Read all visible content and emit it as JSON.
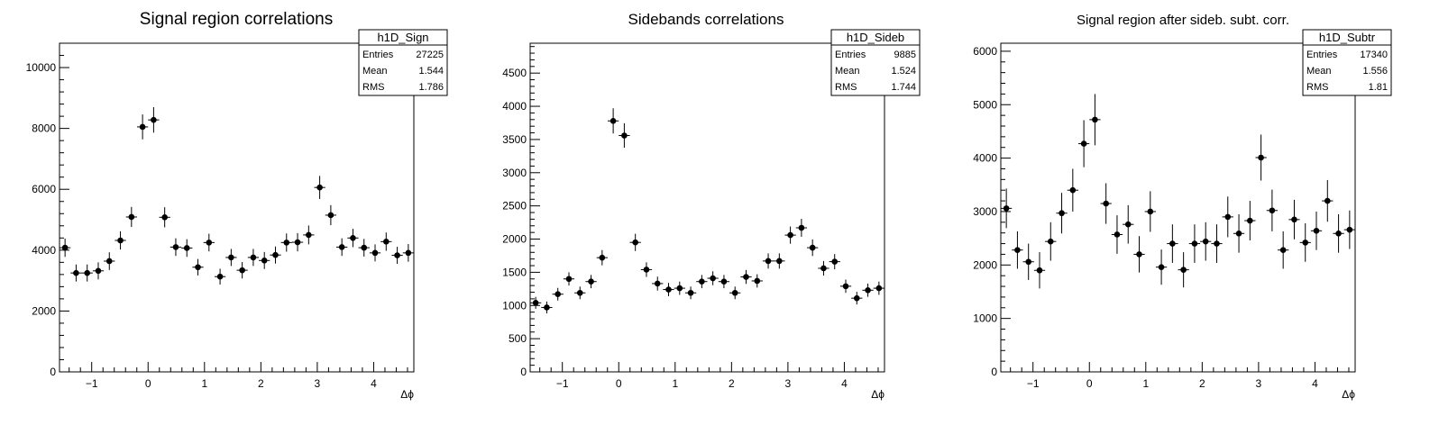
{
  "chart_data": [
    {
      "type": "scatter",
      "title": "Signal region correlations",
      "xlabel": "Δϕ",
      "ylabel": "",
      "xlim": [
        -1.5708,
        4.7124
      ],
      "ylim": [
        0,
        10800
      ],
      "xticks": [
        -1,
        0,
        1,
        2,
        3,
        4
      ],
      "yticks": [
        0,
        2000,
        4000,
        6000,
        8000,
        10000
      ],
      "ytick_labels": [
        "0",
        "2000",
        "4000",
        "6000",
        "8000",
        "10000"
      ],
      "stats": {
        "name": "h1D_Sign",
        "rows": [
          {
            "label": "Entries",
            "value": "27225"
          },
          {
            "label": "Mean",
            "value": "1.544"
          },
          {
            "label": "RMS",
            "value": "1.786"
          }
        ]
      },
      "series": [
        {
          "values": [
            4080,
            3250,
            3250,
            3320,
            3640,
            4320,
            5090,
            8050,
            8280,
            5080,
            4100,
            4070,
            3440,
            4250,
            3130,
            3760,
            3340,
            3760,
            3660,
            3840,
            4250,
            4260,
            4500,
            6060,
            5150,
            4100,
            4400,
            4080,
            3910,
            4280,
            3830,
            3910
          ],
          "errors": [
            300,
            280,
            280,
            280,
            290,
            300,
            330,
            410,
            420,
            330,
            290,
            290,
            270,
            290,
            260,
            280,
            270,
            280,
            280,
            280,
            300,
            300,
            310,
            380,
            330,
            290,
            300,
            290,
            280,
            300,
            280,
            290
          ]
        }
      ]
    },
    {
      "type": "scatter",
      "title": "Sidebands correlations",
      "xlabel": "Δϕ",
      "ylabel": "",
      "xlim": [
        -1.5708,
        4.7124
      ],
      "ylim": [
        0,
        4950
      ],
      "xticks": [
        -1,
        0,
        1,
        2,
        3,
        4
      ],
      "yticks": [
        0,
        500,
        1000,
        1500,
        2000,
        2500,
        3000,
        3500,
        4000,
        4500
      ],
      "ytick_labels": [
        "0",
        "500",
        "1000",
        "1500",
        "2000",
        "2500",
        "3000",
        "3500",
        "4000",
        "4500"
      ],
      "stats": {
        "name": "h1D_Sideb",
        "rows": [
          {
            "label": "Entries",
            "value": "9885"
          },
          {
            "label": "Mean",
            "value": "1.524"
          },
          {
            "label": "RMS",
            "value": "1.744"
          }
        ]
      },
      "series": [
        {
          "values": [
            1040,
            970,
            1170,
            1400,
            1190,
            1360,
            1720,
            3780,
            3560,
            1950,
            1540,
            1330,
            1240,
            1260,
            1190,
            1360,
            1410,
            1360,
            1190,
            1430,
            1370,
            1670,
            1670,
            2060,
            2170,
            1870,
            1560,
            1660,
            1290,
            1110,
            1230,
            1260
          ],
          "errors": [
            90,
            90,
            95,
            100,
            95,
            100,
            115,
            190,
            185,
            130,
            110,
            105,
            100,
            100,
            95,
            100,
            105,
            100,
            95,
            105,
            100,
            115,
            115,
            130,
            135,
            125,
            110,
            115,
            100,
            95,
            100,
            100
          ]
        }
      ]
    },
    {
      "type": "scatter",
      "title": "Signal region after sideb. subt. corr.",
      "xlabel": "Δϕ",
      "ylabel": "",
      "xlim": [
        -1.5708,
        4.7124
      ],
      "ylim": [
        0,
        6150
      ],
      "xticks": [
        -1,
        0,
        1,
        2,
        3,
        4
      ],
      "yticks": [
        0,
        1000,
        2000,
        3000,
        4000,
        5000,
        6000
      ],
      "ytick_labels": [
        "0",
        "1000",
        "2000",
        "3000",
        "4000",
        "5000",
        "6000"
      ],
      "stats": {
        "name": "h1D_Subtr",
        "rows": [
          {
            "label": "Entries",
            "value": "17340"
          },
          {
            "label": "Mean",
            "value": "1.556"
          },
          {
            "label": "RMS",
            "value": "1.81"
          }
        ]
      },
      "series": [
        {
          "values": [
            3060,
            2280,
            2060,
            1900,
            2440,
            2970,
            3400,
            4270,
            4720,
            3150,
            2570,
            2760,
            2200,
            3000,
            1960,
            2400,
            1910,
            2400,
            2440,
            2400,
            2900,
            2590,
            2830,
            4010,
            3020,
            2280,
            2850,
            2420,
            2640,
            3200,
            2590,
            2660
          ],
          "errors": [
            370,
            350,
            340,
            340,
            360,
            380,
            400,
            440,
            480,
            380,
            360,
            360,
            340,
            380,
            330,
            360,
            330,
            360,
            360,
            360,
            380,
            360,
            370,
            430,
            390,
            350,
            370,
            360,
            360,
            390,
            360,
            360
          ]
        }
      ]
    }
  ]
}
